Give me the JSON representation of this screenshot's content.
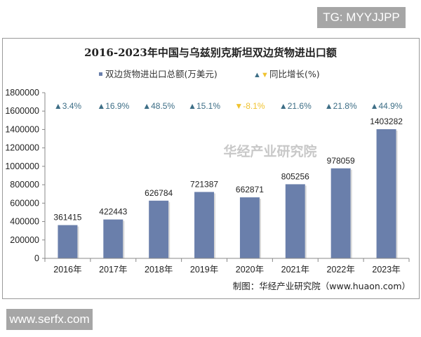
{
  "watermarks": {
    "top": "TG: MYYJJPP",
    "bottom": "www.serfx.com",
    "overlay": "华经产业研究院"
  },
  "chart_data": {
    "type": "bar",
    "title": "2016-2023年中国与乌兹别克斯坦双边货物进出口额",
    "legend": {
      "bar_label": "双边货物进出口总额(万美元)",
      "growth_label": "同比增长(%)",
      "placement": "top"
    },
    "categories": [
      "2016年",
      "2017年",
      "2018年",
      "2019年",
      "2020年",
      "2021年",
      "2022年",
      "2023年"
    ],
    "values": [
      361415,
      422443,
      626784,
      721387,
      662871,
      805256,
      978059,
      1403282
    ],
    "growth": [
      "3.4%",
      "16.9%",
      "48.5%",
      "15.1%",
      "-8.1%",
      "21.6%",
      "21.8%",
      "44.9%"
    ],
    "growth_values": [
      3.4,
      16.9,
      48.5,
      15.1,
      -8.1,
      21.6,
      21.8,
      44.9
    ],
    "ylim": [
      0,
      1800000
    ],
    "yticks": [
      "0",
      "200000",
      "400000",
      "600000",
      "800000",
      "1000000",
      "1200000",
      "1400000",
      "1600000",
      "1800000"
    ],
    "xlabel": "",
    "ylabel": "",
    "grid": false,
    "source": "制图：华经产业研究院（www.huaon.com）",
    "colors": {
      "bar": "#6a7fab",
      "up": "#3d6e86",
      "down": "#f0c330"
    }
  }
}
